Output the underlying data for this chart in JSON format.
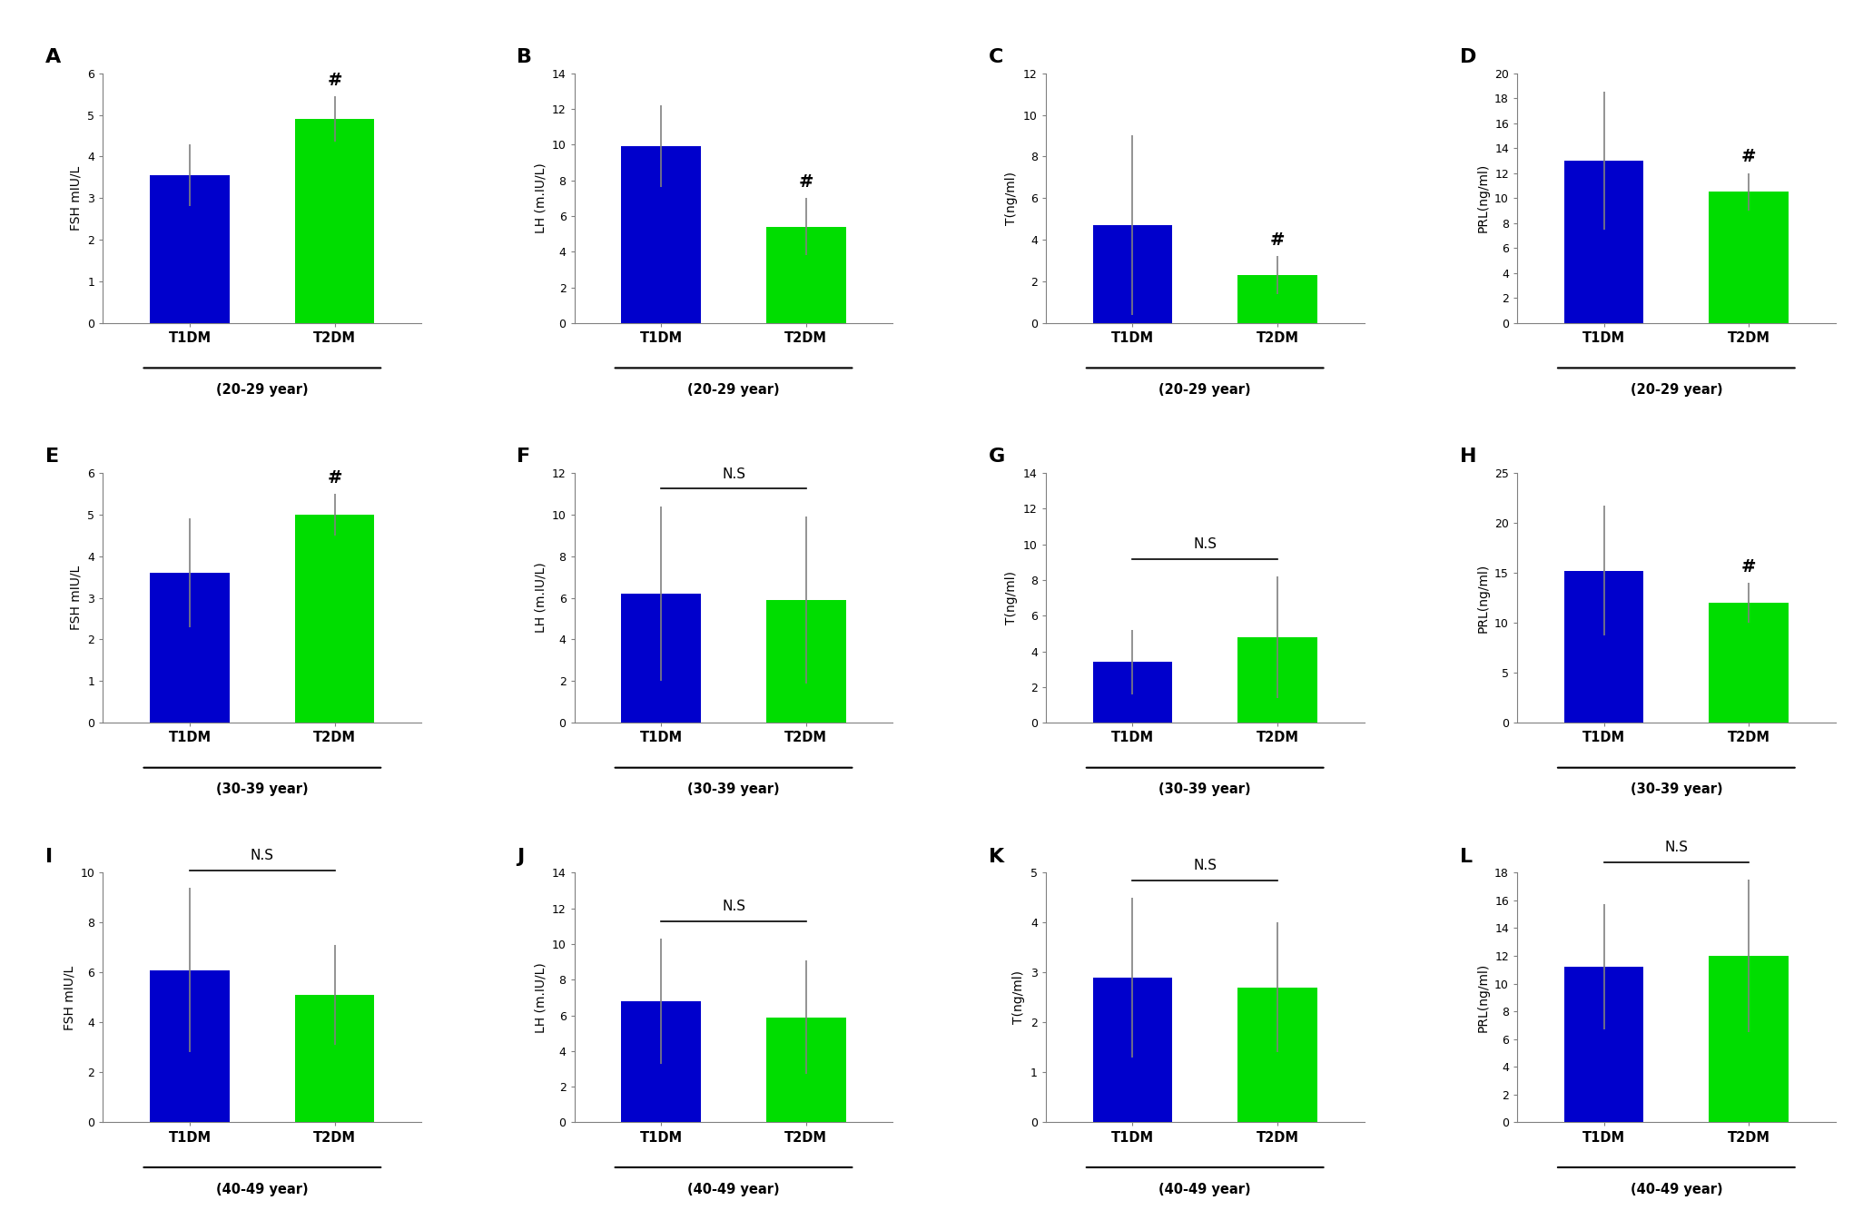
{
  "panels": [
    {
      "label": "A",
      "row": 0,
      "col": 0,
      "ylabel": "FSH mIU/L",
      "xlabel": "(20-29 year)",
      "ylim": [
        0,
        6
      ],
      "yticks": [
        0,
        1,
        2,
        3,
        4,
        5,
        6
      ],
      "values": [
        3.55,
        4.9
      ],
      "errors": [
        0.75,
        0.55
      ],
      "sig": "#",
      "sig_bar": false,
      "sig_on": "T2DM"
    },
    {
      "label": "B",
      "row": 0,
      "col": 1,
      "ylabel": "LH (m.IU/L)",
      "xlabel": "(20-29 year)",
      "ylim": [
        0,
        14
      ],
      "yticks": [
        0,
        2,
        4,
        6,
        8,
        10,
        12,
        14
      ],
      "values": [
        9.9,
        5.4
      ],
      "errors": [
        2.3,
        1.6
      ],
      "sig": "#",
      "sig_bar": false,
      "sig_on": "T2DM"
    },
    {
      "label": "C",
      "row": 0,
      "col": 2,
      "ylabel": "T(ng/ml)",
      "xlabel": "(20-29 year)",
      "ylim": [
        0,
        12
      ],
      "yticks": [
        0,
        2,
        4,
        6,
        8,
        10,
        12
      ],
      "values": [
        4.7,
        2.3
      ],
      "errors": [
        4.3,
        0.9
      ],
      "sig": "#",
      "sig_bar": false,
      "sig_on": "T2DM"
    },
    {
      "label": "D",
      "row": 0,
      "col": 3,
      "ylabel": "PRL(ng/ml)",
      "xlabel": "(20-29 year)",
      "ylim": [
        0,
        20
      ],
      "yticks": [
        0,
        2,
        4,
        6,
        8,
        10,
        12,
        14,
        16,
        18,
        20
      ],
      "values": [
        13.0,
        10.5
      ],
      "errors": [
        5.5,
        1.5
      ],
      "sig": "#",
      "sig_bar": false,
      "sig_on": "T2DM"
    },
    {
      "label": "E",
      "row": 1,
      "col": 0,
      "ylabel": "FSH mIU/L",
      "xlabel": "(30-39 year)",
      "ylim": [
        0,
        6
      ],
      "yticks": [
        0,
        1,
        2,
        3,
        4,
        5,
        6
      ],
      "values": [
        3.6,
        5.0
      ],
      "errors": [
        1.3,
        0.5
      ],
      "sig": "#",
      "sig_bar": false,
      "sig_on": "T2DM"
    },
    {
      "label": "F",
      "row": 1,
      "col": 1,
      "ylabel": "LH (m.IU/L)",
      "xlabel": "(30-39 year)",
      "ylim": [
        0,
        12
      ],
      "yticks": [
        0,
        2,
        4,
        6,
        8,
        10,
        12
      ],
      "values": [
        6.2,
        5.9
      ],
      "errors": [
        4.2,
        4.0
      ],
      "sig": "N.S",
      "sig_bar": true,
      "sig_on": null
    },
    {
      "label": "G",
      "row": 1,
      "col": 2,
      "ylabel": "T(ng/ml)",
      "xlabel": "(30-39 year)",
      "ylim": [
        0,
        14
      ],
      "yticks": [
        0,
        2,
        4,
        6,
        8,
        10,
        12,
        14
      ],
      "values": [
        3.4,
        4.8
      ],
      "errors": [
        1.8,
        3.4
      ],
      "sig": "N.S",
      "sig_bar": true,
      "sig_on": null
    },
    {
      "label": "H",
      "row": 1,
      "col": 3,
      "ylabel": "PRL(ng/ml)",
      "xlabel": "(30-39 year)",
      "ylim": [
        0,
        25
      ],
      "yticks": [
        0,
        5,
        10,
        15,
        20,
        25
      ],
      "values": [
        15.2,
        12.0
      ],
      "errors": [
        6.5,
        2.0
      ],
      "sig": "#",
      "sig_bar": false,
      "sig_on": "T2DM"
    },
    {
      "label": "I",
      "row": 2,
      "col": 0,
      "ylabel": "FSH mIU/L",
      "xlabel": "(40-49 year)",
      "ylim": [
        0,
        10
      ],
      "yticks": [
        0,
        2,
        4,
        6,
        8,
        10
      ],
      "values": [
        6.1,
        5.1
      ],
      "errors": [
        3.3,
        2.0
      ],
      "sig": "N.S",
      "sig_bar": true,
      "sig_on": null
    },
    {
      "label": "J",
      "row": 2,
      "col": 1,
      "ylabel": "LH (m.IU/L)",
      "xlabel": "(40-49 year)",
      "ylim": [
        0,
        14
      ],
      "yticks": [
        0,
        2,
        4,
        6,
        8,
        10,
        12,
        14
      ],
      "values": [
        6.8,
        5.9
      ],
      "errors": [
        3.5,
        3.2
      ],
      "sig": "N.S",
      "sig_bar": true,
      "sig_on": null
    },
    {
      "label": "K",
      "row": 2,
      "col": 2,
      "ylabel": "T(ng/ml)",
      "xlabel": "(40-49 year)",
      "ylim": [
        0,
        5
      ],
      "yticks": [
        0,
        1,
        2,
        3,
        4,
        5
      ],
      "values": [
        2.9,
        2.7
      ],
      "errors": [
        1.6,
        1.3
      ],
      "sig": "N.S",
      "sig_bar": true,
      "sig_on": null
    },
    {
      "label": "L",
      "row": 2,
      "col": 3,
      "ylabel": "PRL(ng/ml)",
      "xlabel": "(40-49 year)",
      "ylim": [
        0,
        18
      ],
      "yticks": [
        0,
        2,
        4,
        6,
        8,
        10,
        12,
        14,
        16,
        18
      ],
      "values": [
        11.2,
        12.0
      ],
      "errors": [
        4.5,
        5.5
      ],
      "sig": "N.S",
      "sig_bar": true,
      "sig_on": null
    }
  ],
  "blue_color": "#0000cc",
  "green_color": "#00dd00",
  "bar_width": 0.55,
  "categories": [
    "T1DM",
    "T2DM"
  ],
  "background_color": "#ffffff"
}
